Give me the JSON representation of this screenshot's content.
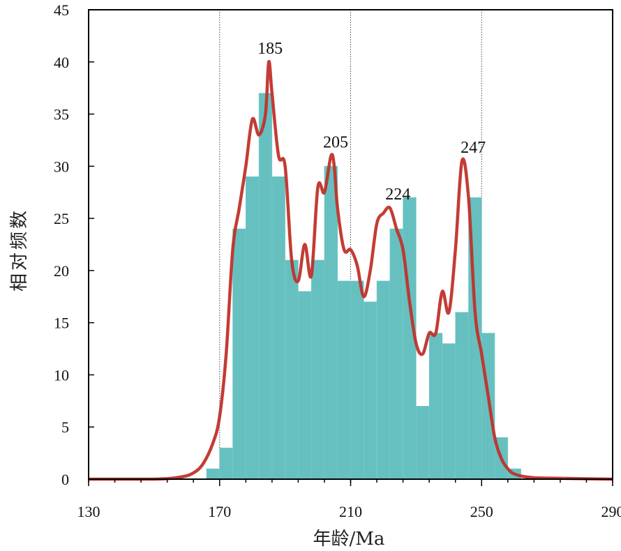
{
  "chart_data": {
    "type": "bar",
    "xlabel": "年龄/Ma",
    "ylabel": "相对频数",
    "xlim": [
      130,
      290
    ],
    "ylim": [
      0,
      45
    ],
    "x_ticks": [
      130,
      170,
      210,
      250,
      290
    ],
    "y_ticks": [
      0,
      5,
      10,
      15,
      20,
      25,
      30,
      35,
      40,
      45
    ],
    "vertical_guides": [
      170,
      210,
      250
    ],
    "bin_width": 4,
    "histogram": {
      "name": "",
      "color": "#66c0c0",
      "bins": [
        {
          "x0": 166,
          "count": 1
        },
        {
          "x0": 170,
          "count": 3
        },
        {
          "x0": 174,
          "count": 24
        },
        {
          "x0": 178,
          "count": 29
        },
        {
          "x0": 182,
          "count": 37
        },
        {
          "x0": 186,
          "count": 29
        },
        {
          "x0": 190,
          "count": 21
        },
        {
          "x0": 194,
          "count": 18
        },
        {
          "x0": 198,
          "count": 21
        },
        {
          "x0": 202,
          "count": 30
        },
        {
          "x0": 206,
          "count": 19
        },
        {
          "x0": 210,
          "count": 19
        },
        {
          "x0": 214,
          "count": 17
        },
        {
          "x0": 218,
          "count": 19
        },
        {
          "x0": 222,
          "count": 24
        },
        {
          "x0": 226,
          "count": 27
        },
        {
          "x0": 230,
          "count": 7
        },
        {
          "x0": 234,
          "count": 14
        },
        {
          "x0": 238,
          "count": 13
        },
        {
          "x0": 242,
          "count": 16
        },
        {
          "x0": 246,
          "count": 27
        },
        {
          "x0": 250,
          "count": 14
        },
        {
          "x0": 254,
          "count": 4
        },
        {
          "x0": 258,
          "count": 1
        }
      ]
    },
    "density_curve": {
      "name": "",
      "color": "#c0312a",
      "points": [
        [
          130,
          0
        ],
        [
          150,
          0
        ],
        [
          158,
          0.2
        ],
        [
          162,
          0.6
        ],
        [
          165,
          1.5
        ],
        [
          168,
          3.5
        ],
        [
          170,
          6
        ],
        [
          172,
          12
        ],
        [
          174,
          22
        ],
        [
          176,
          26
        ],
        [
          178,
          30
        ],
        [
          180,
          34.5
        ],
        [
          182,
          33
        ],
        [
          184,
          35
        ],
        [
          185,
          40
        ],
        [
          186,
          37
        ],
        [
          188,
          31
        ],
        [
          190,
          30
        ],
        [
          192,
          21
        ],
        [
          194,
          19
        ],
        [
          196,
          22.5
        ],
        [
          198,
          19.5
        ],
        [
          200,
          28
        ],
        [
          202,
          27.5
        ],
        [
          204,
          31
        ],
        [
          205,
          30
        ],
        [
          206,
          26
        ],
        [
          208,
          22
        ],
        [
          210,
          22
        ],
        [
          212,
          20.5
        ],
        [
          214,
          17.5
        ],
        [
          216,
          20
        ],
        [
          218,
          24.5
        ],
        [
          220,
          25.5
        ],
        [
          222,
          26
        ],
        [
          224,
          24
        ],
        [
          226,
          22
        ],
        [
          228,
          17
        ],
        [
          230,
          13
        ],
        [
          232,
          12
        ],
        [
          234,
          14
        ],
        [
          236,
          14
        ],
        [
          238,
          18
        ],
        [
          240,
          16
        ],
        [
          242,
          22
        ],
        [
          244,
          30.5
        ],
        [
          246,
          27
        ],
        [
          248,
          16
        ],
        [
          250,
          12
        ],
        [
          252,
          8
        ],
        [
          254,
          4
        ],
        [
          256,
          2
        ],
        [
          258,
          1
        ],
        [
          260,
          0.5
        ],
        [
          264,
          0.2
        ],
        [
          270,
          0.1
        ],
        [
          290,
          0
        ]
      ]
    },
    "annotations": [
      {
        "text": "185",
        "x": 185,
        "y": 40
      },
      {
        "text": "205",
        "x": 205,
        "y": 31
      },
      {
        "text": "224",
        "x": 224,
        "y": 26
      },
      {
        "text": "247",
        "x": 247,
        "y": 30.5
      }
    ]
  }
}
